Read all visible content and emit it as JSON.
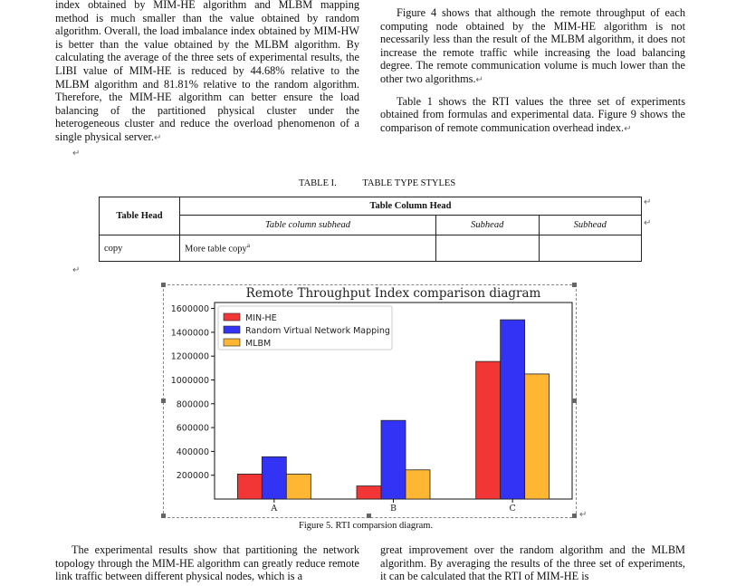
{
  "left_column_paragraph": "index obtained by MIM-HE algorithm and MLBM mapping method is much smaller than the value obtained by random algorithm. Overall, the load imbalance index obtained by MIM-HW is better than the value obtained by the MLBM algorithm. By calculating the average of the three sets of experimental results, the LIBI value of MIM-HE is reduced by 44.68% relative to the MLBM algorithm and 81.81% relative to the random algorithm. Therefore, the MIM-HE algorithm can better ensure the load balancing of the partitioned physical cluster under the heterogeneous cluster and reduce the overload phenomenon of a single physical server.",
  "right_column_paragraph_1": "Figure 4 shows that although the remote throughput of each computing node obtained by the MIM-HE algorithm is not necessarily less than the result of the MLBM algorithm, it does not increase the remote traffic while increasing the load balancing degree. The remote communication volume is much lower than the other two algorithms.",
  "right_column_paragraph_2": "Table 1 shows the RTI values the three set of experiments obtained from formulas and experimental data. Figure 9 shows the comparison of remote communication overhead index.",
  "paragraph_mark": "↵",
  "table": {
    "caption_number": "TABLE I.",
    "caption_title": "TABLE TYPE STYLES",
    "head": "Table Head",
    "column_head": "Table Column Head",
    "column_subhead": "Table column subhead",
    "subhead_1": "Subhead",
    "subhead_2": "Subhead",
    "row_label": "copy",
    "row_copy": "More table copy",
    "row_copy_sup": "a"
  },
  "figure_caption": "Figure 5.   RTI comparsion diagram.",
  "bottom_left_paragraph": "The experimental results show that partitioning the network topology through the MIM-HE algorithm can greatly reduce remote link traffic between different physical nodes, which is a",
  "bottom_right_paragraph": "great improvement over the random algorithm and the MLBM algorithm. By averaging the results of the three set of experiments, it can be calculated that the RTI of MIM-HE is",
  "chart_data": {
    "type": "bar",
    "title": "Remote Throughput Index comparison diagram",
    "categories": [
      "A",
      "B",
      "C"
    ],
    "series": [
      {
        "name": "MIN-HE",
        "color": "#f23535",
        "values": [
          210000,
          110000,
          1155000
        ]
      },
      {
        "name": "Random Virtual Network Mapping",
        "color": "#3333f5",
        "values": [
          355000,
          660000,
          1505000
        ]
      },
      {
        "name": "MLBM",
        "color": "#ffb633",
        "values": [
          210000,
          245000,
          1050000
        ]
      }
    ],
    "yticks": [
      200000,
      400000,
      600000,
      800000,
      1000000,
      1200000,
      1400000,
      1600000
    ],
    "ytick_labels": [
      "200000",
      "400000",
      "600000",
      "800000",
      "1000000",
      "1200000",
      "1400000",
      "1600000"
    ],
    "ylim": [
      0,
      1650000
    ],
    "xlabel": "",
    "ylabel": "",
    "legend_position": "upper-left",
    "grid": false
  }
}
